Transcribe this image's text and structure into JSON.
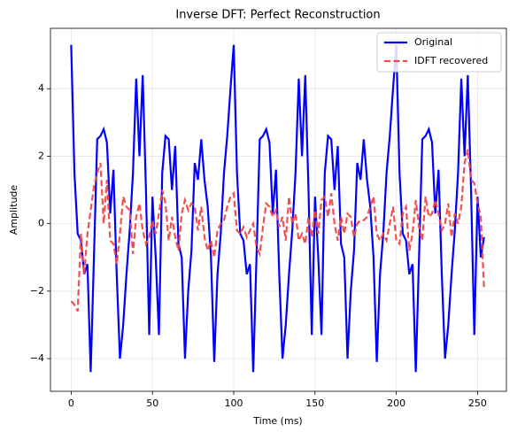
{
  "chart_data": {
    "type": "line",
    "title": "Inverse DFT: Perfect Reconstruction",
    "xlabel": "Time (ms)",
    "ylabel": "Amplitude",
    "x": [
      0,
      2,
      4,
      6,
      8,
      10,
      12,
      14,
      16,
      18,
      20,
      22,
      24,
      26,
      28,
      30,
      32,
      34,
      36,
      38,
      40,
      42,
      44,
      46,
      48,
      50,
      52,
      54,
      56,
      58,
      60,
      62,
      64,
      66,
      68,
      70,
      72,
      74,
      76,
      78,
      80,
      82,
      84,
      86,
      88,
      90,
      92,
      94,
      96,
      98,
      100,
      102,
      104,
      106,
      108,
      110,
      112,
      114,
      116,
      118,
      120,
      122,
      124,
      126,
      128,
      130,
      132,
      134,
      136,
      138,
      140,
      142,
      144,
      146,
      148,
      150,
      152,
      154,
      156,
      158,
      160,
      162,
      164,
      166,
      168,
      170,
      172,
      174,
      176,
      178,
      180,
      182,
      184,
      186,
      188,
      190,
      192,
      194,
      196,
      198,
      200,
      202,
      204,
      206,
      208,
      210,
      212,
      214,
      216,
      218,
      220,
      222,
      224,
      226,
      228,
      230,
      232,
      234,
      236,
      238,
      240,
      242,
      244,
      246,
      248,
      250,
      252,
      254
    ],
    "series": [
      {
        "name": "Original",
        "color": "#0000ff",
        "dash": "solid",
        "values": [
          5.3,
          1.5,
          -0.3,
          -0.5,
          -1.5,
          -1.2,
          -4.4,
          -1.0,
          2.5,
          2.6,
          2.8,
          2.4,
          0.3,
          1.6,
          -1.5,
          -4.0,
          -3.0,
          -1.5,
          -0.2,
          1.5,
          4.3,
          2.0,
          4.4,
          1.0,
          -3.3,
          0.8,
          -1.0,
          -3.3,
          1.5,
          2.6,
          2.5,
          1.0,
          2.3,
          -0.6,
          -1.0,
          -4.0,
          -2.0,
          -0.8,
          1.8,
          1.3,
          2.5,
          1.3,
          0.5,
          -1.0,
          -4.1,
          -1.5,
          -0.3,
          1.5,
          2.6,
          4.0,
          5.3,
          1.5,
          -0.3,
          -0.5,
          -1.5,
          -1.2,
          -4.4,
          -1.0,
          2.5,
          2.6,
          2.8,
          2.4,
          0.3,
          1.6,
          -1.5,
          -4.0,
          -3.0,
          -1.5,
          -0.2,
          1.5,
          4.3,
          2.0,
          4.4,
          1.0,
          -3.3,
          0.8,
          -1.0,
          -3.3,
          1.5,
          2.6,
          2.5,
          1.0,
          2.3,
          -0.6,
          -1.0,
          -4.0,
          -2.0,
          -0.8,
          1.8,
          1.3,
          2.5,
          1.3,
          0.5,
          -1.0,
          -4.1,
          -1.5,
          -0.3,
          1.5,
          2.6,
          4.0,
          5.3,
          1.5,
          -0.3,
          -0.5,
          -1.5,
          -1.2,
          -4.4,
          -1.0,
          2.5,
          2.6,
          2.8,
          2.4,
          0.3,
          1.6,
          -1.5,
          -4.0,
          -3.0,
          -1.5,
          -0.2,
          1.5,
          4.3,
          2.0,
          4.4,
          1.0,
          -3.3,
          0.8,
          -1.0,
          -0.4
        ]
      },
      {
        "name": "IDFT recovered",
        "color": "#f04848",
        "dash": "dashed",
        "values": [
          -2.3,
          -2.4,
          -2.6,
          -0.3,
          -1.5,
          -0.3,
          0.4,
          1.1,
          1.5,
          1.8,
          0.0,
          1.3,
          -0.5,
          -0.6,
          -1.2,
          -0.3,
          0.8,
          0.5,
          0.4,
          -0.9,
          0.2,
          0.6,
          -0.2,
          -0.6,
          -0.4,
          0.1,
          -0.3,
          0.3,
          1.0,
          0.6,
          -0.5,
          0.2,
          -0.4,
          -0.8,
          0.3,
          0.7,
          0.4,
          0.6,
          0.5,
          -0.2,
          0.5,
          -0.4,
          -0.8,
          -0.5,
          -1.0,
          -0.2,
          0.0,
          0.1,
          0.5,
          0.8,
          0.9,
          -0.2,
          -0.3,
          -0.1,
          -0.4,
          -0.2,
          0.0,
          -0.7,
          -0.9,
          -0.1,
          0.6,
          0.5,
          0.2,
          0.4,
          -0.1,
          0.2,
          -0.5,
          0.8,
          0.0,
          0.3,
          -0.5,
          -0.3,
          -0.6,
          0.2,
          -0.4,
          0.4,
          -0.3,
          0.7,
          0.8,
          0.2,
          0.9,
          0.0,
          -0.5,
          0.2,
          -0.3,
          0.3,
          0.2,
          -0.4,
          0.0,
          0.1,
          0.1,
          0.2,
          0.5,
          0.8,
          -0.3,
          -0.5,
          -0.3,
          -0.5,
          0.0,
          0.5,
          -0.5,
          -0.6,
          0.3,
          0.5,
          -0.8,
          -0.3,
          0.7,
          -0.1,
          -0.5,
          0.8,
          0.2,
          0.3,
          0.7,
          0.3,
          -0.2,
          0.0,
          0.6,
          -0.4,
          0.3,
          0.0,
          0.5,
          1.8,
          2.2,
          1.3,
          1.2,
          0.6,
          0.2,
          -1.9
        ]
      }
    ],
    "xlim": [
      -12.75,
      267.75
    ],
    "ylim": [
      -4.97,
      5.79
    ],
    "xticks": [
      0,
      50,
      100,
      150,
      200,
      250
    ],
    "yticks": [
      {
        "value": -4,
        "label": "−4"
      },
      {
        "value": -2,
        "label": "−2"
      },
      0,
      2,
      4
    ],
    "grid": true,
    "legend": "upper right"
  }
}
